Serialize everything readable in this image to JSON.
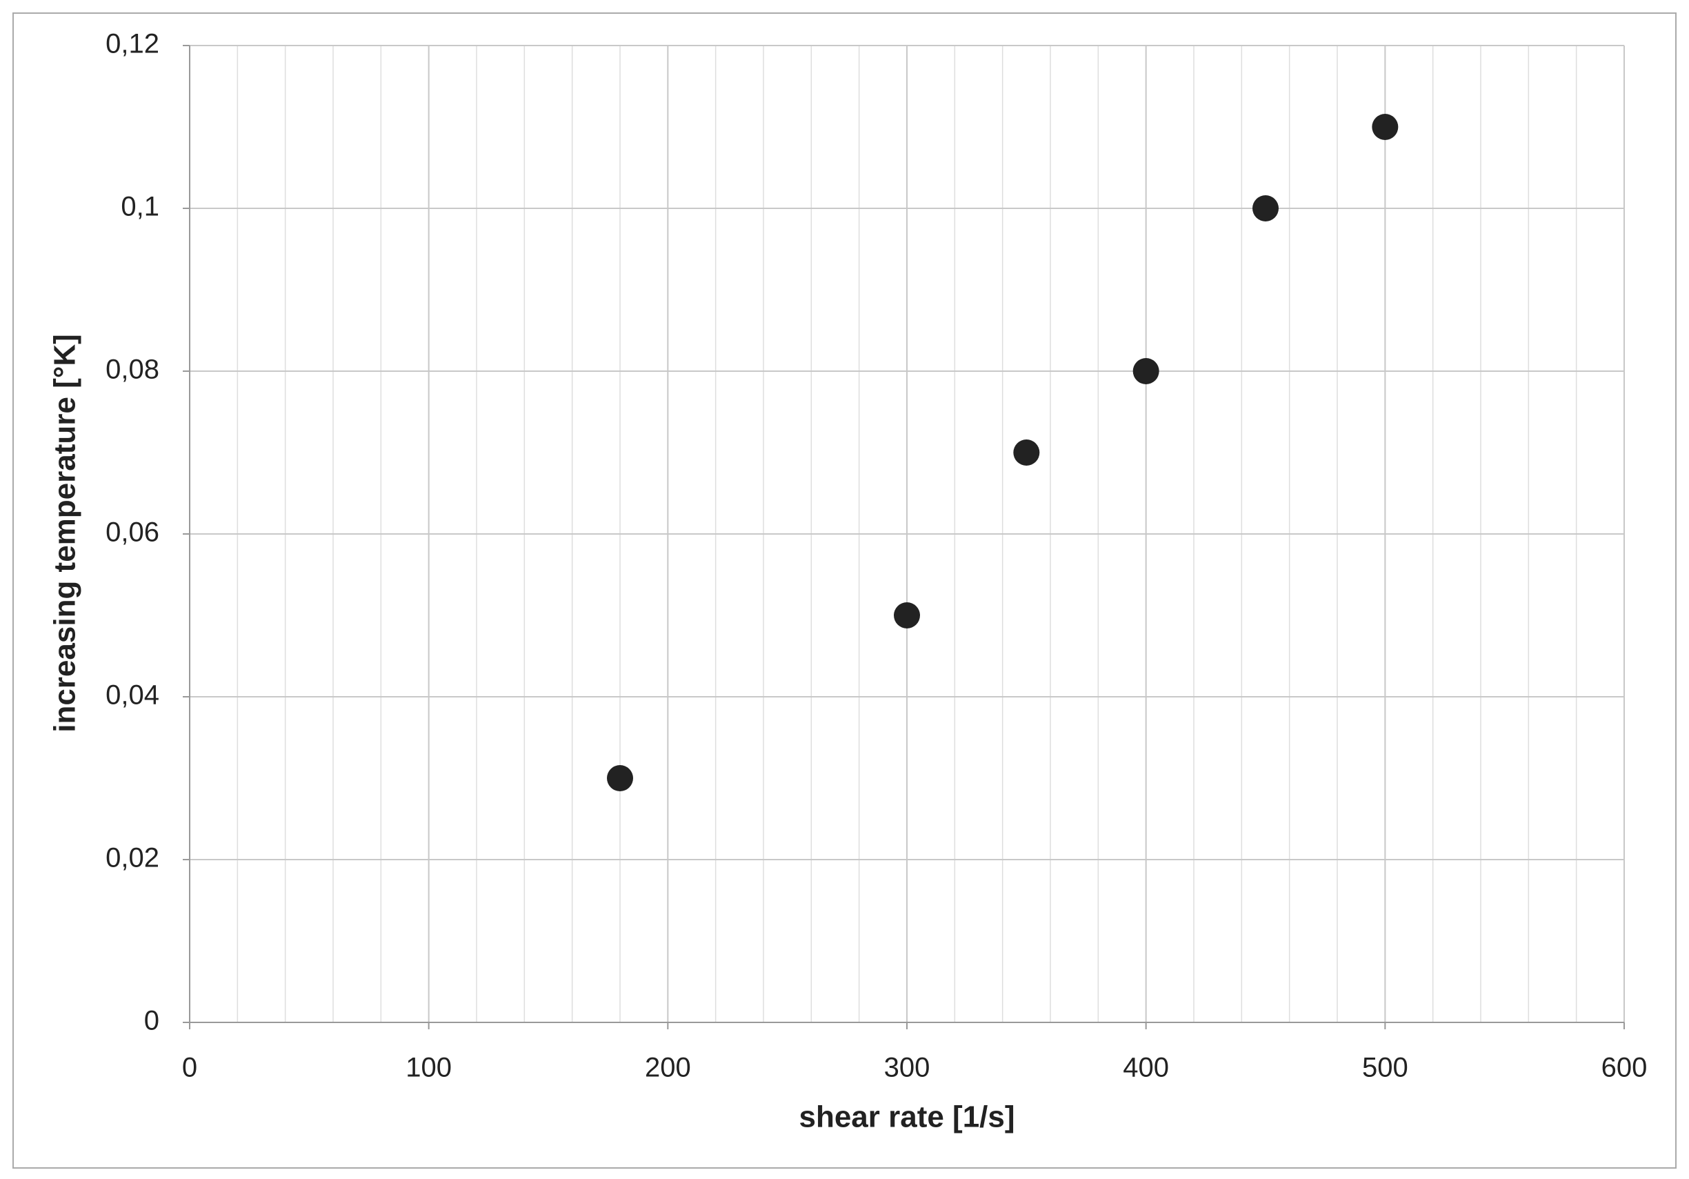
{
  "chart_data": {
    "type": "scatter",
    "x_label": "shear rate [1/s]",
    "y_label": "increasing temperature [°K]",
    "x": [
      180,
      300,
      350,
      400,
      450,
      500
    ],
    "values": [
      0.03,
      0.05,
      0.07,
      0.08,
      0.1,
      0.11
    ],
    "color": "#222222",
    "xlim": [
      0,
      600
    ],
    "xticks": [
      0,
      100,
      200,
      300,
      400,
      500,
      600
    ],
    "x_minor_step": 20,
    "ylim": [
      0,
      0.12
    ],
    "yticks": [
      0,
      {
        "value": 0.02,
        "label": "0,02"
      },
      {
        "value": 0.04,
        "label": "0,04"
      },
      {
        "value": 0.06,
        "label": "0,06"
      },
      {
        "value": 0.08,
        "label": "0,08"
      },
      {
        "value": 0.1,
        "label": "0,1"
      },
      {
        "value": 0.12,
        "label": "0,12"
      }
    ],
    "grid": true
  }
}
